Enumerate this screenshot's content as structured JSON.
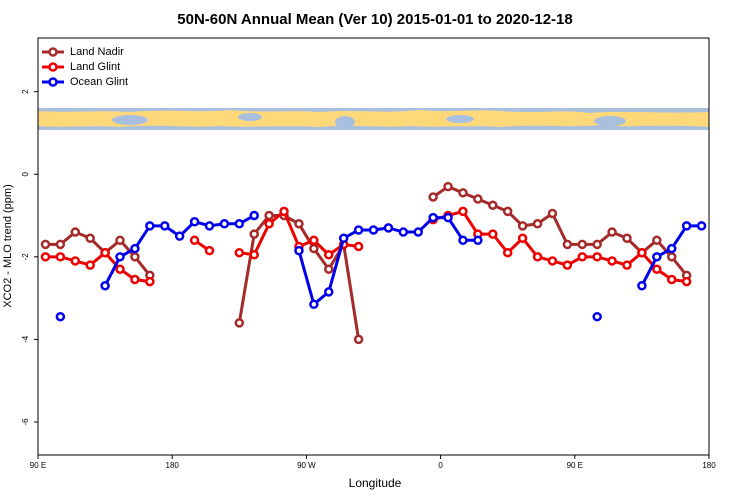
{
  "chart_data": {
    "type": "line",
    "title": "50N-60N Annual Mean (Ver 10)   2015-01-01 to 2020-12-18",
    "xlabel": "Longitude",
    "ylabel": "XCO2 - MLO trend (ppm)",
    "x": [
      95,
      105,
      115,
      125,
      135,
      145,
      155,
      165,
      175,
      185,
      195,
      205,
      215,
      225,
      235,
      245,
      255,
      265,
      275,
      285,
      295,
      305,
      315,
      325,
      335,
      345,
      355,
      365,
      375,
      385,
      395,
      405,
      415,
      425,
      435,
      445,
      455,
      465,
      475,
      485,
      495,
      505,
      515,
      525,
      535
    ],
    "xlim": [
      90,
      540
    ],
    "xticks": [
      {
        "value": 90,
        "label": "90 E"
      },
      180,
      {
        "value": 270,
        "label": "90 W"
      },
      {
        "value": 360,
        "label": "0"
      },
      {
        "value": 450,
        "label": "90 E"
      },
      {
        "value": 540,
        "label": "180"
      }
    ],
    "ylim": [
      -6.8,
      3.3
    ],
    "yticks": [
      -6,
      -4,
      -2,
      0,
      2
    ],
    "legend": "top-left",
    "series": [
      {
        "name": "Land Nadir",
        "color": "#a52a2a",
        "values": [
          -1.7,
          -1.7,
          -1.4,
          -1.55,
          -1.9,
          -1.6,
          -2.0,
          -2.45,
          null,
          null,
          null,
          null,
          null,
          -3.6,
          -1.45,
          -1.0,
          -1.0,
          -1.2,
          -1.8,
          -2.3,
          -1.7,
          -4.0,
          null,
          null,
          null,
          null,
          -0.55,
          -0.3,
          -0.45,
          -0.6,
          -0.75,
          -0.9,
          -1.25,
          -1.2,
          -0.95,
          -1.7,
          -1.7,
          -1.7,
          -1.4,
          -1.55,
          -1.9,
          -1.6,
          -2.0,
          -2.45,
          null
        ]
      },
      {
        "name": "Land Glint",
        "color": "#ee0000",
        "values": [
          -2.0,
          -2.0,
          -2.1,
          -2.2,
          -1.9,
          -2.3,
          -2.55,
          -2.6,
          null,
          null,
          -1.6,
          -1.85,
          null,
          -1.9,
          -1.95,
          -1.2,
          -0.9,
          -1.75,
          -1.6,
          -1.95,
          -1.7,
          -1.75,
          null,
          null,
          null,
          null,
          -1.1,
          -1.0,
          -0.9,
          -1.45,
          -1.45,
          -1.9,
          -1.55,
          -2.0,
          -2.1,
          -2.2,
          -2.0,
          -2.0,
          -2.1,
          -2.2,
          -1.9,
          -2.3,
          -2.55,
          -2.6,
          null
        ]
      },
      {
        "name": "Ocean Glint",
        "color": "#0000ee",
        "values": [
          null,
          -3.45,
          null,
          null,
          -2.7,
          -2.0,
          -1.8,
          -1.25,
          -1.25,
          -1.5,
          -1.15,
          -1.25,
          -1.2,
          -1.2,
          -1.0,
          null,
          null,
          -1.85,
          -3.15,
          -2.85,
          -1.55,
          -1.35,
          -1.35,
          -1.3,
          -1.4,
          -1.4,
          -1.05,
          -1.05,
          -1.6,
          -1.6,
          null,
          null,
          null,
          null,
          null,
          null,
          null,
          -3.45,
          null,
          null,
          -2.7,
          -2.0,
          -1.8,
          -1.25,
          -1.25
        ]
      }
    ]
  }
}
